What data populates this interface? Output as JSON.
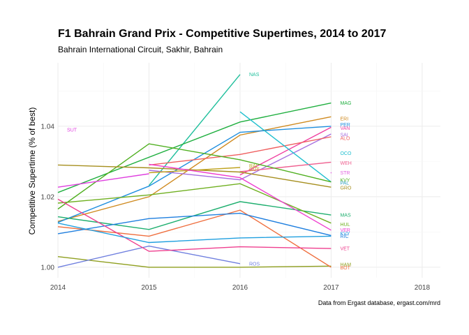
{
  "chart_data": {
    "type": "line",
    "title": "F1 Bahrain Grand Prix - Competitive Supertimes, 2014 to 2017",
    "subtitle": "Bahrain International Circuit, Sakhir, Bahrain",
    "ylabel": "Competitive Supertime (% of best)",
    "xlabel": "",
    "caption": "Data from Ergast database, ergast.com/mrd",
    "xlim": [
      2014,
      2018.2
    ],
    "ylim": [
      0.997,
      1.058
    ],
    "x_ticks": [
      "2014",
      "2015",
      "2016",
      "2017",
      "2018"
    ],
    "y_ticks": [
      "1.00",
      "1.02",
      "1.04"
    ],
    "grid": true,
    "legend": "none",
    "series": [
      {
        "name": "NAS",
        "color": "#1fbf9c",
        "points": [
          [
            2015,
            1.0232
          ],
          [
            2016,
            1.0547
          ]
        ]
      },
      {
        "name": "MAG",
        "color": "#1faf3f",
        "points": [
          [
            2014,
            1.0212
          ],
          [
            2016,
            1.0412
          ],
          [
            2017,
            1.0466
          ]
        ]
      },
      {
        "name": "ERI",
        "color": "#cf8a1f",
        "points": [
          [
            2014,
            1.013
          ],
          [
            2015,
            1.02
          ],
          [
            2016,
            1.0375
          ],
          [
            2017,
            1.0427
          ]
        ]
      },
      {
        "name": "PER",
        "color": "#1f8fdf",
        "points": [
          [
            2014,
            1.0127
          ],
          [
            2015,
            1.023
          ],
          [
            2016,
            1.0383
          ],
          [
            2017,
            1.04
          ]
        ]
      },
      {
        "name": "VAN",
        "color": "#ef3fa0",
        "points": [
          [
            2016,
            1.0262
          ],
          [
            2017,
            1.0397
          ]
        ]
      },
      {
        "name": "SAI",
        "color": "#a66fdf",
        "points": [
          [
            2015,
            1.0275
          ],
          [
            2016,
            1.0248
          ],
          [
            2017,
            1.0378
          ]
        ]
      },
      {
        "name": "ALO",
        "color": "#ef5f5f",
        "points": [
          [
            2015,
            1.029
          ],
          [
            2016,
            1.032
          ],
          [
            2017,
            1.037
          ]
        ]
      },
      {
        "name": "OCO",
        "color": "#1fbfcf",
        "points": [
          [
            2016,
            1.0441
          ],
          [
            2017,
            1.0242
          ]
        ]
      },
      {
        "name": "WEH",
        "color": "#ef5f8f",
        "points": [
          [
            2016,
            1.0271
          ],
          [
            2017,
            1.0298
          ]
        ]
      },
      {
        "name": "STR",
        "color": "#df5fdf",
        "points": [
          [
            2017,
            1.0268
          ]
        ]
      },
      {
        "name": "KVY",
        "color": "#4faf1f",
        "points": [
          [
            2014,
            1.0165
          ],
          [
            2015,
            1.035
          ],
          [
            2016,
            1.0305
          ],
          [
            2017,
            1.0242
          ]
        ]
      },
      {
        "name": "PAL",
        "color": "#2f9fbf",
        "points": [
          [
            2016,
            1.027
          ]
        ]
      },
      {
        "name": "GRO",
        "color": "#a68f1f",
        "points": [
          [
            2014,
            1.029
          ],
          [
            2015,
            1.0282
          ],
          [
            2016,
            1.027
          ],
          [
            2017,
            1.0227
          ]
        ]
      },
      {
        "name": "RAI",
        "color": "#bfa31f",
        "points": [
          [
            2015,
            1.0268
          ],
          [
            2016,
            1.0283
          ]
        ]
      },
      {
        "name": "MAS",
        "color": "#1faf6f",
        "points": [
          [
            2014,
            1.0143
          ],
          [
            2015,
            1.0107
          ],
          [
            2016,
            1.0186
          ],
          [
            2017,
            1.0148
          ]
        ]
      },
      {
        "name": "HUL",
        "color": "#6faf1f",
        "points": [
          [
            2014,
            1.0182
          ],
          [
            2015,
            1.0205
          ],
          [
            2016,
            1.0237
          ],
          [
            2017,
            1.0125
          ]
        ]
      },
      {
        "name": "VER",
        "color": "#ef3fcf",
        "points": [
          [
            2015,
            1.0292
          ],
          [
            2016,
            1.0254
          ],
          [
            2017,
            1.0105
          ]
        ]
      },
      {
        "name": "HAM",
        "color": "#8f9f1f",
        "points": [
          [
            2014,
            1.003
          ],
          [
            2015,
            1.0
          ],
          [
            2016,
            1.0
          ],
          [
            2017,
            1.0003
          ]
        ]
      },
      {
        "name": "BOT",
        "color": "#ef6f3f",
        "points": [
          [
            2014,
            1.0115
          ],
          [
            2015,
            1.0088
          ],
          [
            2016,
            1.0162
          ],
          [
            2017,
            1.0
          ]
        ]
      },
      {
        "name": "RIC",
        "color": "#1f7fdf",
        "points": [
          [
            2014,
            1.0095
          ],
          [
            2015,
            1.0138
          ],
          [
            2016,
            1.0153
          ],
          [
            2017,
            1.009
          ]
        ]
      },
      {
        "name": "SUT",
        "color": "#df3fdf",
        "points": [
          [
            2014,
            1.0227
          ],
          [
            2015,
            1.0265
          ]
        ]
      },
      {
        "name": "ROS",
        "color": "#6f7fdf",
        "points": [
          [
            2014,
            1.0
          ],
          [
            2015,
            1.006
          ],
          [
            2016,
            1.001
          ]
        ]
      },
      {
        "name": "VET",
        "color": "#ef3f8f",
        "points": [
          [
            2014,
            1.0193
          ],
          [
            2015,
            1.0045
          ],
          [
            2016,
            1.0058
          ],
          [
            2017,
            1.0053
          ]
        ]
      },
      {
        "name": "KVY2",
        "color": "#1f9fdf",
        "points": [
          [
            2014,
            1.0125
          ],
          [
            2015,
            1.007
          ],
          [
            2016,
            1.0083
          ],
          [
            2017,
            1.0088
          ]
        ]
      }
    ],
    "labels": [
      {
        "text": "NAS",
        "x": 2016.1,
        "y": 1.0547,
        "color": "#1fbf9c"
      },
      {
        "text": "MAG",
        "x": 2017.1,
        "y": 1.0466,
        "color": "#1faf3f"
      },
      {
        "text": "ERI",
        "x": 2017.1,
        "y": 1.0422,
        "color": "#cf8a1f"
      },
      {
        "text": "PER",
        "x": 2017.1,
        "y": 1.0405,
        "color": "#1f8fdf"
      },
      {
        "text": "VAN",
        "x": 2017.1,
        "y": 1.0395,
        "color": "#ef3fa0"
      },
      {
        "text": "SAI",
        "x": 2017.1,
        "y": 1.0376,
        "color": "#a66fdf"
      },
      {
        "text": "ALO",
        "x": 2017.1,
        "y": 1.0366,
        "color": "#ef5f5f"
      },
      {
        "text": "OCO",
        "x": 2017.1,
        "y": 1.0324,
        "color": "#1fbfcf"
      },
      {
        "text": "WEH",
        "x": 2017.1,
        "y": 1.0296,
        "color": "#ef5f8f"
      },
      {
        "text": "STR",
        "x": 2017.1,
        "y": 1.0268,
        "color": "#df5fdf"
      },
      {
        "text": "KVY",
        "x": 2017.1,
        "y": 1.0247,
        "color": "#4faf1f"
      },
      {
        "text": "PAL",
        "x": 2017.1,
        "y": 1.0239,
        "color": "#2f9fbf"
      },
      {
        "text": "GRO",
        "x": 2017.1,
        "y": 1.0225,
        "color": "#a68f1f"
      },
      {
        "text": "RAI",
        "x": 2016.1,
        "y": 1.0288,
        "color": "#bfa31f"
      },
      {
        "text": "GUT",
        "x": 2016.1,
        "y": 1.0278,
        "color": "#bfa31f"
      },
      {
        "text": "MAS",
        "x": 2017.1,
        "y": 1.0148,
        "color": "#1faf6f"
      },
      {
        "text": "HUL",
        "x": 2017.1,
        "y": 1.0122,
        "color": "#6faf1f"
      },
      {
        "text": "VER",
        "x": 2017.1,
        "y": 1.0106,
        "color": "#ef3fcf"
      },
      {
        "text": "KVY",
        "x": 2017.1,
        "y": 1.0096,
        "color": "#1f8fdf"
      },
      {
        "text": "RIC",
        "x": 2017.1,
        "y": 1.0088,
        "color": "#1f7fdf"
      },
      {
        "text": "VET",
        "x": 2017.1,
        "y": 1.0053,
        "color": "#ef3f8f"
      },
      {
        "text": "HAM",
        "x": 2017.1,
        "y": 1.0008,
        "color": "#8f9f1f"
      },
      {
        "text": "BOT",
        "x": 2017.1,
        "y": 0.9999,
        "color": "#ef6f3f"
      },
      {
        "text": "ROS",
        "x": 2016.1,
        "y": 1.001,
        "color": "#6f7fdf"
      },
      {
        "text": "SUT",
        "x": 2014.1,
        "y": 1.039,
        "color": "#df3fdf"
      }
    ]
  }
}
